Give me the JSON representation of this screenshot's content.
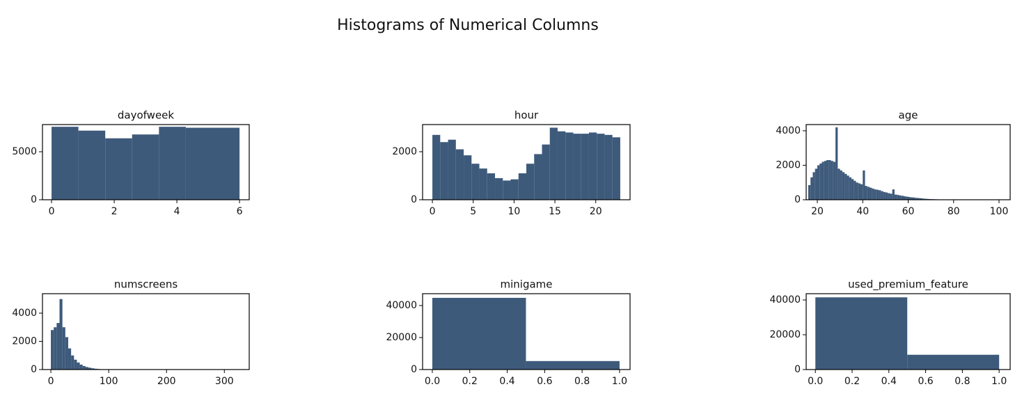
{
  "title": "Histograms of Numerical Columns",
  "chart_data": [
    {
      "type": "histogram",
      "title": "dayofweek",
      "color": "#3e5a7b",
      "bins": [
        0,
        0.857,
        1.714,
        2.571,
        3.429,
        4.286,
        5.143,
        6
      ],
      "values": [
        7600,
        7200,
        6400,
        6800,
        7600,
        7500,
        7500
      ],
      "xlim": [
        -0.29,
        6.31
      ],
      "ylim": [
        0,
        7830
      ],
      "xticks": [
        0,
        2,
        4,
        6
      ],
      "yticks": [
        0,
        5000
      ]
    },
    {
      "type": "histogram",
      "title": "hour",
      "color": "#3e5a7b",
      "bins": [
        0,
        0.958,
        1.917,
        2.875,
        3.833,
        4.792,
        5.75,
        6.708,
        7.667,
        8.625,
        9.583,
        10.542,
        11.5,
        12.458,
        13.417,
        14.375,
        15.333,
        16.292,
        17.25,
        18.208,
        19.167,
        20.125,
        21.083,
        22.042,
        23
      ],
      "values": [
        2700,
        2400,
        2500,
        2100,
        1850,
        1500,
        1300,
        1100,
        900,
        800,
        850,
        1100,
        1500,
        1900,
        2300,
        3000,
        2850,
        2800,
        2750,
        2750,
        2800,
        2750,
        2700,
        2600
      ],
      "xlim": [
        -1.2,
        24.2
      ],
      "ylim": [
        0,
        3130
      ],
      "xticks": [
        0,
        5,
        10,
        15,
        20
      ],
      "yticks": [
        0,
        2000
      ]
    },
    {
      "type": "histogram",
      "title": "age",
      "color": "#3e5a7b",
      "bins": [
        16,
        17,
        18,
        19,
        20,
        21,
        22,
        23,
        24,
        25,
        26,
        27,
        28,
        29,
        30,
        31,
        32,
        33,
        34,
        35,
        36,
        37,
        38,
        39,
        40,
        41,
        42,
        43,
        44,
        45,
        46,
        47,
        48,
        49,
        50,
        51,
        52,
        53,
        54,
        55,
        56,
        57,
        58,
        59,
        60,
        61,
        62,
        63,
        64,
        65,
        66,
        67,
        68,
        69,
        70,
        71,
        72,
        73,
        74,
        75,
        76,
        77,
        78,
        79,
        80,
        81,
        82,
        83,
        84,
        85,
        86,
        87,
        88,
        89,
        90,
        91,
        92,
        93,
        94,
        95,
        96,
        97,
        98,
        99,
        100,
        101
      ],
      "values": [
        850,
        1300,
        1600,
        1800,
        2000,
        2100,
        2200,
        2250,
        2300,
        2300,
        2250,
        2200,
        4200,
        1800,
        1700,
        1600,
        1500,
        1400,
        1300,
        1200,
        1100,
        1000,
        950,
        900,
        1700,
        800,
        750,
        700,
        650,
        600,
        580,
        550,
        500,
        450,
        420,
        380,
        350,
        600,
        300,
        280,
        250,
        230,
        200,
        180,
        160,
        140,
        130,
        110,
        100,
        90,
        70,
        60,
        50,
        40,
        35,
        30,
        25,
        20,
        18,
        15,
        12,
        10,
        8,
        6,
        5,
        4,
        3,
        3,
        2,
        2,
        2,
        1,
        1,
        1,
        1,
        1,
        1,
        0,
        0,
        0,
        0,
        0,
        0,
        0,
        1
      ],
      "xlim": [
        15.1,
        104.9
      ],
      "ylim": [
        0,
        4360
      ],
      "xticks": [
        20,
        40,
        60,
        80,
        100
      ],
      "yticks": [
        0,
        2000,
        4000
      ]
    },
    {
      "type": "histogram",
      "title": "numscreens",
      "color": "#3e5a7b",
      "bins": [
        0,
        5,
        10,
        15,
        20,
        25,
        30,
        35,
        40,
        45,
        50,
        55,
        60,
        65,
        70,
        75,
        80,
        85,
        90,
        95,
        100,
        105,
        110,
        115,
        120,
        125,
        130,
        135,
        140,
        145,
        150,
        155,
        160,
        165,
        170,
        175,
        180,
        185,
        190,
        195,
        200,
        205,
        210,
        215,
        220,
        225,
        230,
        235,
        240,
        245,
        250,
        255,
        260,
        265,
        270,
        275,
        280,
        285,
        290,
        295,
        300,
        305,
        310,
        315,
        320,
        325
      ],
      "values": [
        2800,
        3000,
        3300,
        5000,
        3000,
        2300,
        1500,
        1000,
        700,
        500,
        350,
        250,
        180,
        130,
        90,
        60,
        40,
        25,
        15,
        10,
        8,
        6,
        5,
        4,
        3,
        3,
        2,
        2,
        2,
        1,
        1,
        1,
        1,
        1,
        1,
        0,
        1,
        0,
        1,
        0,
        0,
        1,
        0,
        0,
        1,
        0,
        0,
        0,
        1,
        0,
        0,
        0,
        0,
        0,
        1,
        0,
        0,
        0,
        0,
        0,
        0,
        0,
        0,
        0,
        1
      ],
      "xlim": [
        -14.5,
        343
      ],
      "ylim": [
        0,
        5380
      ],
      "xticks": [
        0,
        100,
        200,
        300
      ],
      "yticks": [
        0,
        2000,
        4000
      ]
    },
    {
      "type": "histogram",
      "title": "minigame",
      "color": "#3e5a7b",
      "bins": [
        0,
        0.5,
        1
      ],
      "values": [
        44800,
        5300
      ],
      "xlim": [
        -0.052,
        1.056
      ],
      "ylim": [
        0,
        47400
      ],
      "xticks": [
        {
          "value": 0,
          "label": "0.0"
        },
        {
          "value": 0.2,
          "label": "0.2"
        },
        {
          "value": 0.4,
          "label": "0.4"
        },
        {
          "value": 0.6,
          "label": "0.6"
        },
        {
          "value": 0.8,
          "label": "0.8"
        },
        {
          "value": 1,
          "label": "1.0"
        }
      ],
      "yticks": [
        0,
        20000,
        40000
      ]
    },
    {
      "type": "histogram",
      "title": "used_premium_feature",
      "color": "#3e5a7b",
      "bins": [
        0,
        0.5,
        1
      ],
      "values": [
        41500,
        8500
      ],
      "xlim": [
        -0.05,
        1.06
      ],
      "ylim": [
        0,
        43600
      ],
      "xticks": [
        {
          "value": 0,
          "label": "0.0"
        },
        {
          "value": 0.2,
          "label": "0.2"
        },
        {
          "value": 0.4,
          "label": "0.4"
        },
        {
          "value": 0.6,
          "label": "0.6"
        },
        {
          "value": 0.8,
          "label": "0.8"
        },
        {
          "value": 1,
          "label": "1.0"
        }
      ],
      "yticks": [
        0,
        20000,
        40000
      ]
    }
  ]
}
